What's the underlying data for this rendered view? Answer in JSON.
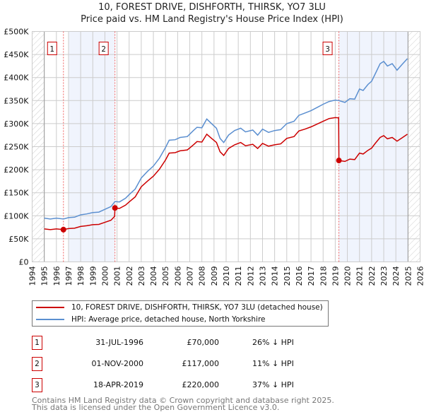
{
  "chart_data": {
    "type": "line",
    "title": "10, FOREST DRIVE, DISHFORTH, THIRSK, YO7 3LU",
    "subtitle": "Price paid vs. HM Land Registry's House Price Index (HPI)",
    "xlim": [
      1994,
      2026
    ],
    "ylim": [
      0,
      500000
    ],
    "x_ticks": [
      "1994",
      "1995",
      "1996",
      "1997",
      "1998",
      "1999",
      "2000",
      "2001",
      "2002",
      "2003",
      "2004",
      "2005",
      "2006",
      "2007",
      "2008",
      "2009",
      "2010",
      "2011",
      "2012",
      "2013",
      "2014",
      "2015",
      "2016",
      "2017",
      "2018",
      "2019",
      "2020",
      "2021",
      "2022",
      "2023",
      "2024",
      "2025",
      "2026"
    ],
    "y_ticks": [
      {
        "v": 0,
        "label": "£0"
      },
      {
        "v": 50000,
        "label": "£50K"
      },
      {
        "v": 100000,
        "label": "£100K"
      },
      {
        "v": 150000,
        "label": "£150K"
      },
      {
        "v": 200000,
        "label": "£200K"
      },
      {
        "v": 250000,
        "label": "£250K"
      },
      {
        "v": 300000,
        "label": "£300K"
      },
      {
        "v": 350000,
        "label": "£350K"
      },
      {
        "v": 400000,
        "label": "£400K"
      },
      {
        "v": 450000,
        "label": "£450K"
      },
      {
        "v": 500000,
        "label": "£500K"
      }
    ],
    "grid": true,
    "hatched_ranges": [
      [
        1994,
        1995
      ],
      [
        2025,
        2026
      ]
    ],
    "shaded_ranges": [
      [
        1997,
        2000.83
      ],
      [
        2019.3,
        2025
      ]
    ],
    "series": [
      {
        "name": "10, FOREST DRIVE, DISHFORTH, THIRSK, YO7 3LU (detached house)",
        "color": "#cc0000",
        "x": [
          1995,
          1995.5,
          1996,
          1996.58,
          1997,
          1997.5,
          1998,
          1998.5,
          1999,
          1999.5,
          2000,
          2000.5,
          2000.8,
          2000.83,
          2001.2,
          2001.7,
          2002,
          2002.5,
          2003,
          2003.5,
          2004,
          2004.5,
          2005,
          2005.3,
          2005.8,
          2006.2,
          2006.8,
          2007.3,
          2007.6,
          2008,
          2008.4,
          2008.8,
          2009.2,
          2009.5,
          2009.8,
          2010.2,
          2010.7,
          2011.2,
          2011.6,
          2012.2,
          2012.6,
          2013,
          2013.5,
          2014,
          2014.5,
          2015,
          2015.6,
          2016,
          2016.5,
          2017,
          2017.5,
          2018,
          2018.5,
          2019,
          2019.28,
          2019.3,
          2019.8,
          2020.2,
          2020.6,
          2021,
          2021.3,
          2021.7,
          2022,
          2022.3,
          2022.7,
          2023,
          2023.3,
          2023.7,
          2024.1,
          2024.5,
          2024.95
        ],
        "y": [
          71500,
          70000,
          71500,
          70000,
          72300,
          73000,
          76800,
          78300,
          80600,
          81300,
          85800,
          90400,
          98600,
          117000,
          116000,
          123000,
          130000,
          141000,
          163000,
          175000,
          186000,
          201000,
          221000,
          236000,
          237000,
          241000,
          243000,
          254000,
          261000,
          260000,
          277000,
          268000,
          259000,
          239000,
          231000,
          246000,
          254000,
          259000,
          252000,
          255000,
          246000,
          257000,
          251000,
          254000,
          256000,
          268000,
          272000,
          284000,
          288000,
          293000,
          299000,
          305000,
          311000,
          313000,
          312600,
          220000,
          218000,
          223000,
          222000,
          236000,
          234000,
          242000,
          247000,
          257000,
          270000,
          274000,
          267000,
          270000,
          262000,
          269000,
          277000
        ]
      },
      {
        "name": "HPI: Average price, detached house, North Yorkshire",
        "color": "#5b8fd0",
        "x": [
          1995,
          1995.5,
          1996,
          1996.58,
          1997,
          1997.5,
          1998,
          1998.5,
          1999,
          1999.5,
          2000,
          2000.5,
          2000.83,
          2001.2,
          2001.7,
          2002,
          2002.5,
          2003,
          2003.5,
          2004,
          2004.5,
          2005,
          2005.3,
          2005.8,
          2006.2,
          2006.8,
          2007.3,
          2007.6,
          2008,
          2008.4,
          2008.8,
          2009.2,
          2009.5,
          2009.8,
          2010.2,
          2010.7,
          2011.2,
          2011.6,
          2012.2,
          2012.6,
          2013,
          2013.5,
          2014,
          2014.5,
          2015,
          2015.6,
          2016,
          2016.5,
          2017,
          2017.5,
          2018,
          2018.5,
          2019,
          2019.3,
          2019.8,
          2020.2,
          2020.6,
          2021,
          2021.3,
          2021.7,
          2022,
          2022.3,
          2022.7,
          2023,
          2023.3,
          2023.7,
          2024.1,
          2024.5,
          2024.95
        ],
        "y": [
          95000,
          93000,
          95000,
          93000,
          96000,
          97000,
          102000,
          104000,
          107000,
          108000,
          114000,
          120000,
          131000,
          130000,
          138000,
          146000,
          158000,
          182000,
          196000,
          208000,
          225000,
          248000,
          264000,
          265000,
          270000,
          272000,
          285000,
          292000,
          291000,
          310000,
          300000,
          290000,
          268000,
          259000,
          275000,
          285000,
          290000,
          282000,
          286000,
          275000,
          288000,
          281000,
          285000,
          287000,
          300000,
          305000,
          318000,
          323000,
          328000,
          335000,
          342000,
          348000,
          351000,
          350000,
          346000,
          354000,
          353000,
          375000,
          372000,
          385000,
          392000,
          408000,
          430000,
          435000,
          425000,
          430000,
          416000,
          428000,
          441000
        ]
      }
    ],
    "sales": [
      {
        "label": "1",
        "x": 1996.58,
        "y": 70000
      },
      {
        "label": "2",
        "x": 2000.83,
        "y": 117000
      },
      {
        "label": "3",
        "x": 2019.3,
        "y": 220000
      }
    ],
    "legend": [
      "10, FOREST DRIVE, DISHFORTH, THIRSK, YO7 3LU (detached house)",
      "HPI: Average price, detached house, North Yorkshire"
    ],
    "legend_placement": "below"
  },
  "transactions": [
    {
      "num": "1",
      "date": "31-JUL-1996",
      "price": "£70,000",
      "hpi": "26% ↓ HPI"
    },
    {
      "num": "2",
      "date": "01-NOV-2000",
      "price": "£117,000",
      "hpi": "11% ↓ HPI"
    },
    {
      "num": "3",
      "date": "18-APR-2019",
      "price": "£220,000",
      "hpi": "37% ↓ HPI"
    }
  ],
  "footer": [
    "Contains HM Land Registry data © Crown copyright and database right 2025.",
    "This data is licensed under the Open Government Licence v3.0."
  ]
}
